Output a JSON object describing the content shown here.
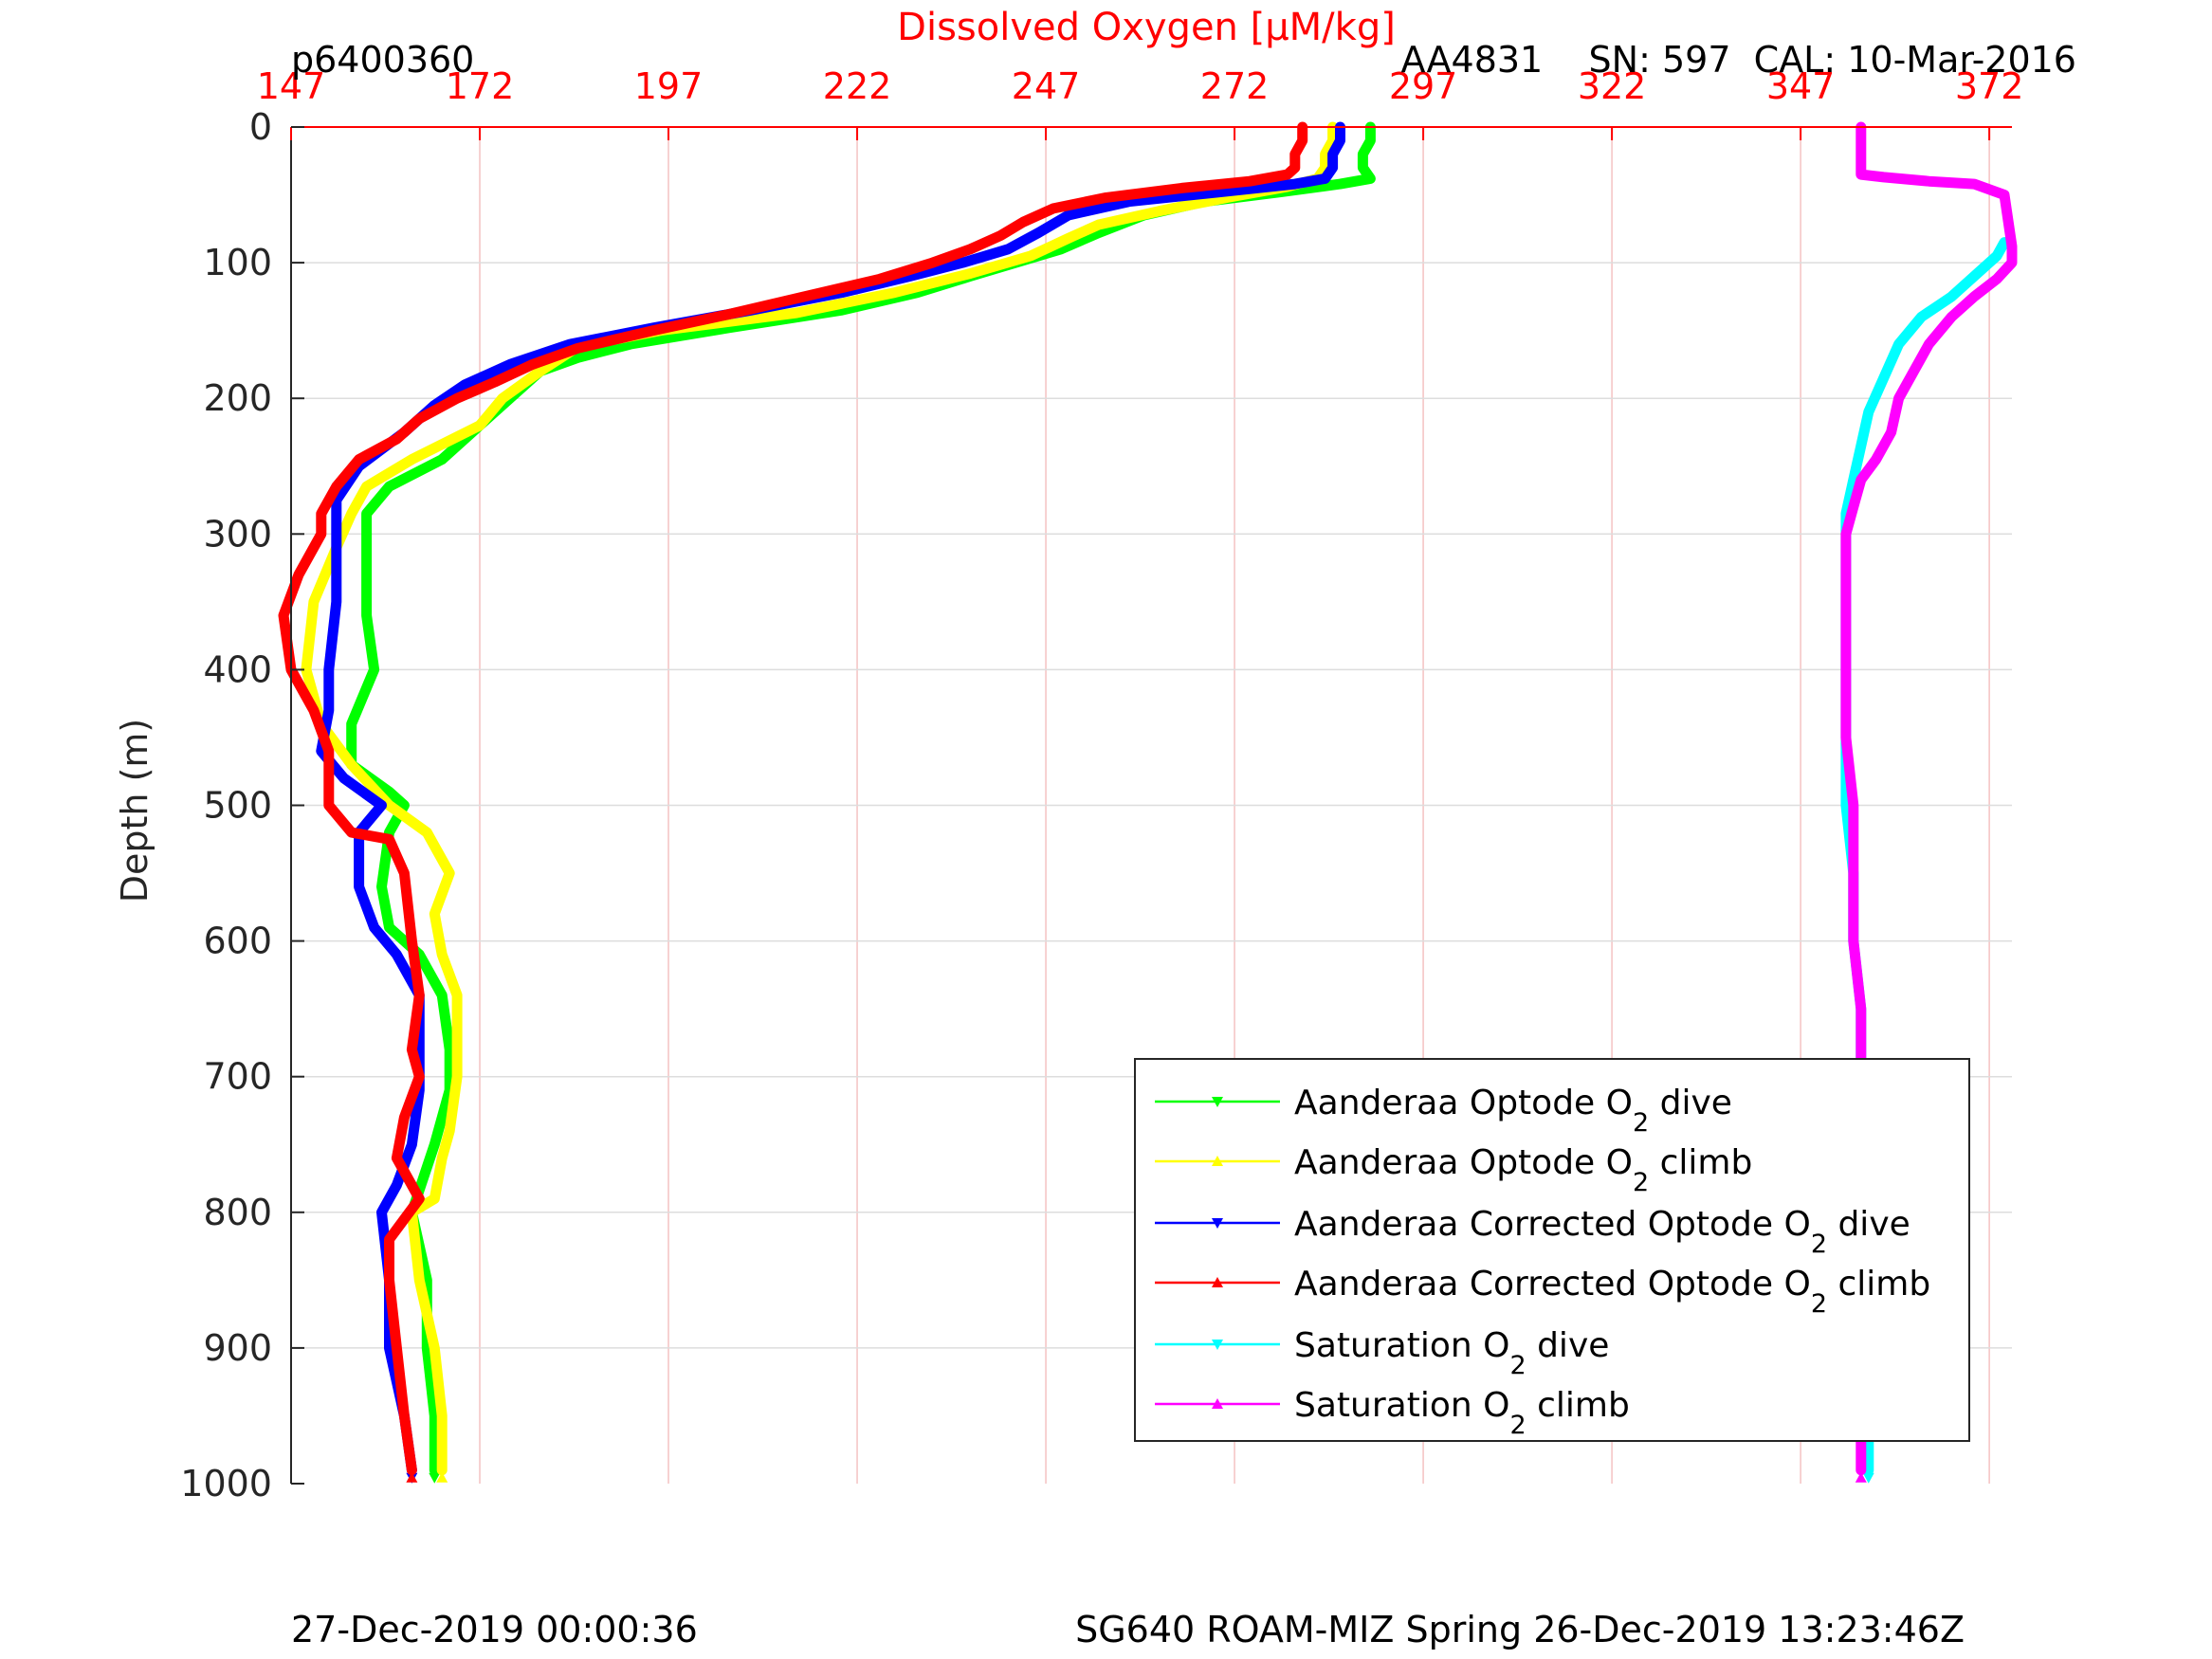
{
  "header": {
    "left_id": "p6400360",
    "sensor_info": "AA4831    SN: 597  CAL: 10-Mar-2016"
  },
  "footer": {
    "left": "27-Dec-2019 00:00:36",
    "right": "SG640 ROAM-MIZ Spring 26-Dec-2019 13:23:46Z"
  },
  "colors": {
    "axis_top": "#ff0000",
    "grid_vertical": "#f4c2c2",
    "grid_horizontal": "#dddddd",
    "text": "#262626"
  },
  "chart_data": {
    "type": "line",
    "title": "Dissolved Oxygen [μM/kg]",
    "ylabel": "Depth (m)",
    "xlabel": "",
    "xlim": [
      147,
      375
    ],
    "ylim": [
      0,
      1000
    ],
    "y_reversed": true,
    "x_axis_position": "top",
    "x_ticks": [
      147,
      172,
      197,
      222,
      247,
      272,
      297,
      322,
      347,
      372
    ],
    "y_ticks": [
      0,
      100,
      200,
      300,
      400,
      500,
      600,
      700,
      800,
      900,
      1000
    ],
    "grid": true,
    "legend_position": "bottom-right",
    "series": [
      {
        "name": "Aanderaa Optode O2 dive",
        "legend": {
          "pre": "Aanderaa Optode O",
          "sub": "2",
          "post": " dive"
        },
        "color": "#00ff00",
        "marker": "down-triangle",
        "points": [
          [
            290,
            0
          ],
          [
            290,
            10
          ],
          [
            289,
            20
          ],
          [
            289,
            30
          ],
          [
            290,
            38
          ],
          [
            286,
            42
          ],
          [
            278,
            48
          ],
          [
            268,
            55
          ],
          [
            260,
            65
          ],
          [
            254,
            78
          ],
          [
            249,
            90
          ],
          [
            243,
            100
          ],
          [
            237,
            110
          ],
          [
            230,
            122
          ],
          [
            220,
            135
          ],
          [
            205,
            148
          ],
          [
            192,
            160
          ],
          [
            185,
            170
          ],
          [
            180,
            180
          ],
          [
            176,
            200
          ],
          [
            172,
            220
          ],
          [
            167,
            245
          ],
          [
            160,
            265
          ],
          [
            157,
            285
          ],
          [
            157,
            310
          ],
          [
            157,
            360
          ],
          [
            158,
            400
          ],
          [
            155,
            440
          ],
          [
            155,
            470
          ],
          [
            160,
            490
          ],
          [
            162,
            500
          ],
          [
            160,
            520
          ],
          [
            159,
            560
          ],
          [
            160,
            590
          ],
          [
            164,
            610
          ],
          [
            167,
            640
          ],
          [
            168,
            680
          ],
          [
            168,
            710
          ],
          [
            166,
            750
          ],
          [
            163,
            800
          ],
          [
            165,
            850
          ],
          [
            165,
            900
          ],
          [
            166,
            950
          ],
          [
            166,
            990
          ]
        ]
      },
      {
        "name": "Aanderaa Optode O2 climb",
        "legend": {
          "pre": "Aanderaa Optode O",
          "sub": "2",
          "post": " climb"
        },
        "color": "#ffff00",
        "marker": "up-triangle",
        "points": [
          [
            285,
            0
          ],
          [
            285,
            10
          ],
          [
            284,
            20
          ],
          [
            284,
            30
          ],
          [
            283,
            38
          ],
          [
            279,
            44
          ],
          [
            271,
            52
          ],
          [
            262,
            62
          ],
          [
            254,
            72
          ],
          [
            250,
            82
          ],
          [
            245,
            95
          ],
          [
            237,
            108
          ],
          [
            227,
            122
          ],
          [
            214,
            137
          ],
          [
            196,
            150
          ],
          [
            185,
            162
          ],
          [
            180,
            180
          ],
          [
            175,
            200
          ],
          [
            172,
            220
          ],
          [
            163,
            245
          ],
          [
            157,
            265
          ],
          [
            155,
            285
          ],
          [
            153,
            310
          ],
          [
            150,
            350
          ],
          [
            149,
            400
          ],
          [
            151,
            440
          ],
          [
            155,
            470
          ],
          [
            160,
            500
          ],
          [
            165,
            520
          ],
          [
            168,
            550
          ],
          [
            166,
            580
          ],
          [
            167,
            610
          ],
          [
            169,
            640
          ],
          [
            169,
            680
          ],
          [
            169,
            700
          ],
          [
            168,
            740
          ],
          [
            167,
            760
          ],
          [
            166,
            790
          ],
          [
            163,
            800
          ],
          [
            164,
            850
          ],
          [
            166,
            900
          ],
          [
            167,
            950
          ],
          [
            167,
            990
          ]
        ]
      },
      {
        "name": "Aanderaa Corrected Optode O2 dive",
        "legend": {
          "pre": "Aanderaa Corrected Optode O",
          "sub": "2",
          "post": " dive"
        },
        "color": "#0000ff",
        "marker": "down-triangle",
        "points": [
          [
            286,
            0
          ],
          [
            286,
            10
          ],
          [
            285,
            20
          ],
          [
            285,
            30
          ],
          [
            284,
            38
          ],
          [
            280,
            42
          ],
          [
            270,
            48
          ],
          [
            258,
            55
          ],
          [
            250,
            65
          ],
          [
            246,
            78
          ],
          [
            242,
            90
          ],
          [
            236,
            100
          ],
          [
            229,
            110
          ],
          [
            220,
            122
          ],
          [
            208,
            135
          ],
          [
            195,
            148
          ],
          [
            184,
            160
          ],
          [
            176,
            175
          ],
          [
            170,
            190
          ],
          [
            166,
            205
          ],
          [
            162,
            225
          ],
          [
            156,
            250
          ],
          [
            153,
            275
          ],
          [
            153,
            300
          ],
          [
            153,
            350
          ],
          [
            152,
            400
          ],
          [
            152,
            430
          ],
          [
            151,
            460
          ],
          [
            154,
            480
          ],
          [
            159,
            500
          ],
          [
            156,
            520
          ],
          [
            156,
            560
          ],
          [
            158,
            590
          ],
          [
            161,
            610
          ],
          [
            164,
            640
          ],
          [
            164,
            680
          ],
          [
            164,
            710
          ],
          [
            163,
            750
          ],
          [
            161,
            780
          ],
          [
            159,
            800
          ],
          [
            160,
            850
          ],
          [
            160,
            900
          ],
          [
            162,
            950
          ],
          [
            163,
            990
          ]
        ]
      },
      {
        "name": "Aanderaa Corrected Optode O2 climb",
        "legend": {
          "pre": "Aanderaa Corrected Optode O",
          "sub": "2",
          "post": " climb"
        },
        "color": "#ff0000",
        "marker": "up-triangle",
        "points": [
          [
            281,
            0
          ],
          [
            281,
            10
          ],
          [
            280,
            20
          ],
          [
            280,
            30
          ],
          [
            279,
            35
          ],
          [
            274,
            40
          ],
          [
            265,
            45
          ],
          [
            255,
            52
          ],
          [
            248,
            60
          ],
          [
            244,
            70
          ],
          [
            241,
            80
          ],
          [
            237,
            90
          ],
          [
            232,
            100
          ],
          [
            225,
            112
          ],
          [
            215,
            125
          ],
          [
            205,
            138
          ],
          [
            195,
            150
          ],
          [
            185,
            163
          ],
          [
            179,
            175
          ],
          [
            174,
            188
          ],
          [
            169,
            200
          ],
          [
            164,
            215
          ],
          [
            161,
            230
          ],
          [
            156,
            245
          ],
          [
            153,
            265
          ],
          [
            151,
            285
          ],
          [
            151,
            300
          ],
          [
            148,
            330
          ],
          [
            146,
            360
          ],
          [
            147,
            400
          ],
          [
            150,
            430
          ],
          [
            152,
            460
          ],
          [
            152,
            500
          ],
          [
            155,
            520
          ],
          [
            160,
            525
          ],
          [
            162,
            550
          ],
          [
            163,
            600
          ],
          [
            164,
            640
          ],
          [
            163,
            680
          ],
          [
            164,
            700
          ],
          [
            162,
            730
          ],
          [
            161,
            760
          ],
          [
            164,
            790
          ],
          [
            160,
            820
          ],
          [
            160,
            850
          ],
          [
            161,
            900
          ],
          [
            162,
            950
          ],
          [
            163,
            990
          ]
        ]
      },
      {
        "name": "Saturation O2 dive",
        "legend": {
          "pre": "Saturation O",
          "sub": "2",
          "post": " dive"
        },
        "color": "#00ffff",
        "marker": "down-triangle",
        "points": [
          [
            374,
            85
          ],
          [
            373,
            95
          ],
          [
            370,
            110
          ],
          [
            367,
            125
          ],
          [
            363,
            140
          ],
          [
            360,
            160
          ],
          [
            358,
            185
          ],
          [
            356,
            210
          ],
          [
            355,
            235
          ],
          [
            354,
            260
          ],
          [
            353,
            285
          ],
          [
            353,
            320
          ],
          [
            353,
            360
          ],
          [
            353,
            400
          ],
          [
            353,
            450
          ],
          [
            353,
            500
          ],
          [
            354,
            550
          ],
          [
            354,
            600
          ],
          [
            355,
            650
          ],
          [
            355,
            700
          ],
          [
            355,
            750
          ],
          [
            355,
            800
          ],
          [
            355,
            850
          ],
          [
            356,
            900
          ],
          [
            356,
            950
          ],
          [
            356,
            990
          ]
        ]
      },
      {
        "name": "Saturation O2 climb",
        "legend": {
          "pre": "Saturation O",
          "sub": "2",
          "post": " climb"
        },
        "color": "#ff00ff",
        "marker": "up-triangle",
        "points": [
          [
            355,
            0
          ],
          [
            355,
            15
          ],
          [
            355,
            25
          ],
          [
            355,
            35
          ],
          [
            358,
            37
          ],
          [
            364,
            40
          ],
          [
            370,
            42
          ],
          [
            374,
            50
          ],
          [
            375,
            88
          ],
          [
            375,
            100
          ],
          [
            373,
            112
          ],
          [
            370,
            125
          ],
          [
            367,
            140
          ],
          [
            364,
            160
          ],
          [
            362,
            180
          ],
          [
            360,
            200
          ],
          [
            359,
            225
          ],
          [
            357,
            245
          ],
          [
            355,
            260
          ],
          [
            354,
            280
          ],
          [
            353,
            300
          ],
          [
            353,
            350
          ],
          [
            353,
            400
          ],
          [
            353,
            450
          ],
          [
            354,
            500
          ],
          [
            354,
            550
          ],
          [
            354,
            600
          ],
          [
            355,
            650
          ],
          [
            355,
            700
          ],
          [
            355,
            750
          ],
          [
            355,
            800
          ],
          [
            355,
            850
          ],
          [
            355,
            900
          ],
          [
            355,
            950
          ],
          [
            355,
            990
          ]
        ]
      }
    ]
  }
}
